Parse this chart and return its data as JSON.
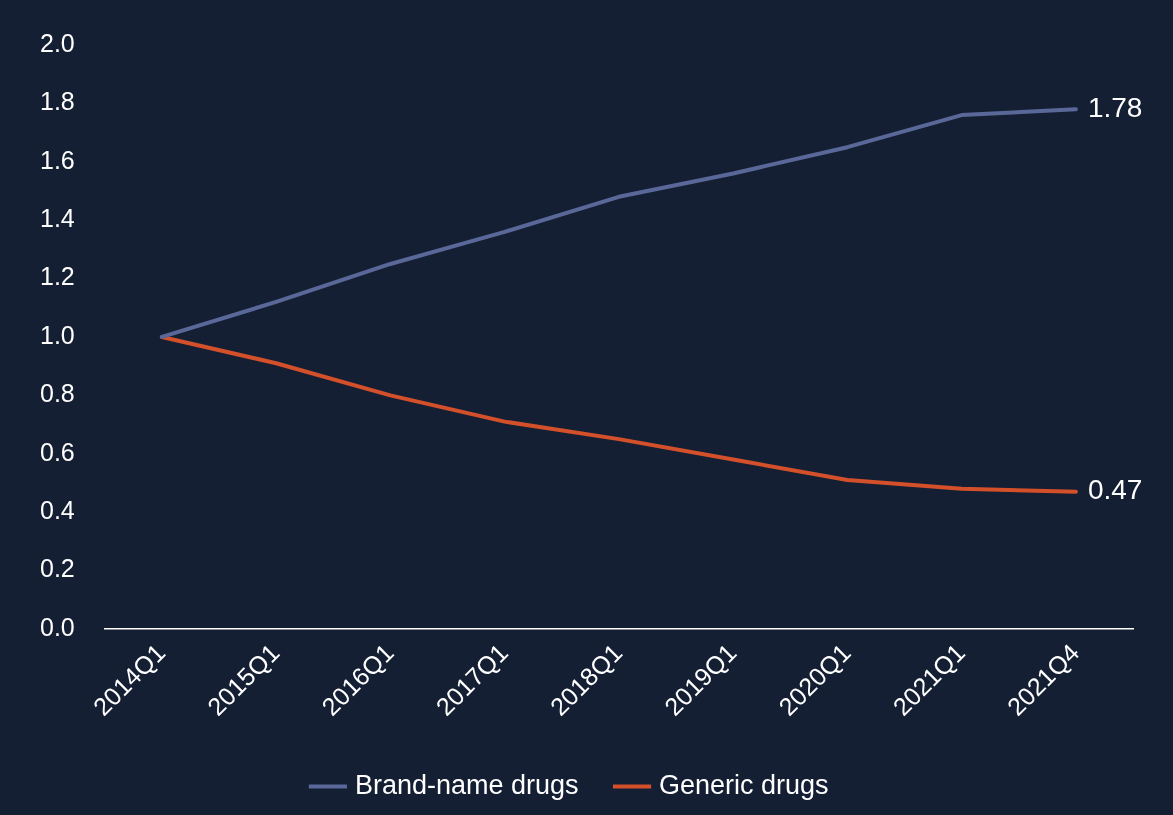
{
  "chart_data": {
    "type": "line",
    "categories": [
      "2014Q1",
      "2015Q1",
      "2016Q1",
      "2017Q1",
      "2018Q1",
      "2019Q1",
      "2020Q1",
      "2021Q1",
      "2021Q4"
    ],
    "series": [
      {
        "name": "Brand-name drugs",
        "color": "#5a6899",
        "values": [
          1.0,
          1.12,
          1.25,
          1.36,
          1.48,
          1.56,
          1.65,
          1.76,
          1.78
        ],
        "value_labels": [
          null,
          null,
          null,
          null,
          null,
          null,
          null,
          null,
          "1.78"
        ]
      },
      {
        "name": "Generic drugs",
        "color": "#d4502a",
        "values": [
          1.0,
          0.91,
          0.8,
          0.71,
          0.65,
          0.58,
          0.51,
          0.48,
          0.47
        ],
        "value_labels": [
          null,
          null,
          null,
          null,
          null,
          null,
          null,
          null,
          "0.47"
        ]
      }
    ],
    "ylim": [
      0,
      2
    ],
    "yticks": [
      {
        "value": 0,
        "label": "0.0"
      },
      {
        "value": 0.2,
        "label": "0.2"
      },
      {
        "value": 0.4,
        "label": "0.4"
      },
      {
        "value": 0.6,
        "label": "0.6"
      },
      {
        "value": 0.8,
        "label": "0.8"
      },
      {
        "value": 1,
        "label": "1.0"
      },
      {
        "value": 1.2,
        "label": "1.2"
      },
      {
        "value": 1.4,
        "label": "1.4"
      },
      {
        "value": 1.6,
        "label": "1.6"
      },
      {
        "value": 1.8,
        "label": "1.8"
      },
      {
        "value": 2,
        "label": "2.0"
      }
    ],
    "grid": false,
    "legend": "bottom",
    "marker": "none",
    "line_style": "solid"
  }
}
